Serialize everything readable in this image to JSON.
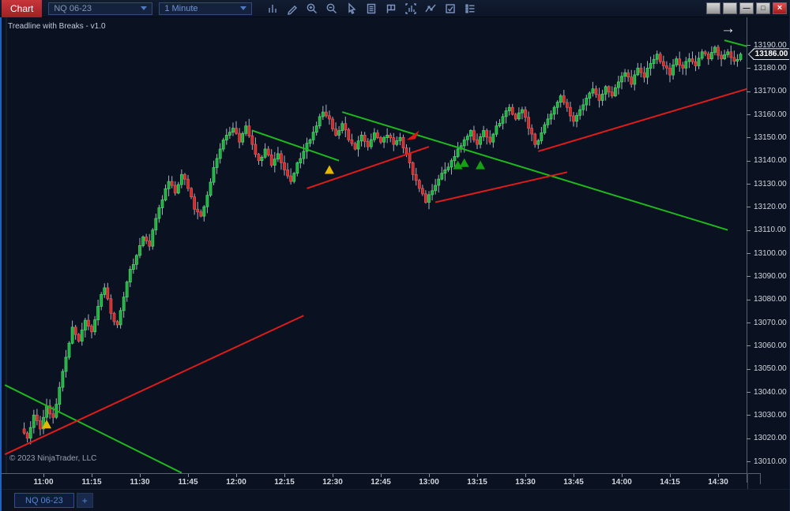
{
  "toolbar": {
    "chart_tab_label": "Chart",
    "instrument_value": "NQ 06-23",
    "interval_value": "1 Minute",
    "icon_names": [
      "chart-style",
      "drawing-tools",
      "zoom-in",
      "zoom-out",
      "cursor",
      "data-series",
      "chart-trader",
      "indicators",
      "trend-lines",
      "strategies",
      "properties"
    ]
  },
  "window_controls": [
    {
      "name": "extra-1",
      "glyph": ""
    },
    {
      "name": "extra-2",
      "glyph": ""
    },
    {
      "name": "minimize",
      "glyph": "—"
    },
    {
      "name": "maximize",
      "glyph": "□"
    },
    {
      "name": "close",
      "glyph": "×"
    }
  ],
  "chart": {
    "indicator_label": "Treadline with Breaks - v1.0",
    "copyright": "© 2023 NinjaTrader, LLC",
    "scroll_arrow": "→"
  },
  "price_marker": {
    "label": "13186.00",
    "value": 13186
  },
  "tab_bar": {
    "tab_label": "NQ 06-23",
    "add_button": "+"
  },
  "chart_data": {
    "type": "candlestick",
    "instrument": "NQ 06-23",
    "interval": "1 Minute",
    "title": "Treadline with Breaks - v1.0",
    "price_axis": {
      "min": 13010,
      "max": 13190,
      "step": 10,
      "tick_labels": [
        "13190.00",
        "13180.00",
        "13170.00",
        "13160.00",
        "13150.00",
        "13140.00",
        "13130.00",
        "13120.00",
        "13110.00",
        "13100.00",
        "13090.00",
        "13080.00",
        "13070.00",
        "13060.00",
        "13050.00",
        "13040.00",
        "13030.00",
        "13020.00",
        "13010.00"
      ]
    },
    "time_axis": {
      "tick_labels": [
        "11:00",
        "11:15",
        "11:30",
        "11:45",
        "12:00",
        "12:15",
        "12:30",
        "12:45",
        "13:00",
        "13:15",
        "13:30",
        "13:45",
        "14:00",
        "14:15",
        "14:30"
      ],
      "step_min": 15
    },
    "last_price": 13186,
    "candles": {
      "note": "1-minute bars; anchor closes sampled every 2 minutes starting 10:54",
      "start_offset_min": -6,
      "anchor_step_min": 2,
      "anchor_closes": [
        13024,
        13020,
        13030,
        13024,
        13034,
        13029,
        13042,
        13055,
        13068,
        13062,
        13071,
        13066,
        13077,
        13085,
        13074,
        13069,
        13081,
        13093,
        13099,
        13107,
        13103,
        13115,
        13123,
        13131,
        13126,
        13134,
        13128,
        13119,
        13116,
        13125,
        13137,
        13145,
        13151,
        13154,
        13148,
        13155,
        13147,
        13140,
        13145,
        13138,
        13143,
        13136,
        13131,
        13139,
        13144,
        13149,
        13155,
        13161,
        13158,
        13151,
        13156,
        13149,
        13145,
        13151,
        13146,
        13152,
        13148,
        13151,
        13147,
        13150,
        13143,
        13134,
        13128,
        13122,
        13127,
        13132,
        13136,
        13140,
        13145,
        13149,
        13153,
        13147,
        13153,
        13148,
        13155,
        13159,
        13163,
        13158,
        13162,
        13154,
        13147,
        13152,
        13158,
        13163,
        13168,
        13163,
        13157,
        13162,
        13167,
        13171,
        13166,
        13172,
        13168,
        13174,
        13178,
        13173,
        13180,
        13176,
        13182,
        13186,
        13181,
        13177,
        13184,
        13180,
        13184,
        13181,
        13187,
        13184,
        13189,
        13184,
        13187,
        13183,
        13186
      ]
    },
    "trendlines": [
      {
        "color": "green",
        "t1": -12,
        "p1": 13043,
        "t2": 43,
        "p2": 13005
      },
      {
        "color": "red",
        "t1": -12,
        "p1": 13013,
        "t2": 81,
        "p2": 13073
      },
      {
        "color": "green",
        "t1": 65,
        "p1": 13153,
        "t2": 92,
        "p2": 13140
      },
      {
        "color": "red",
        "t1": 82,
        "p1": 13128,
        "t2": 120,
        "p2": 13146
      },
      {
        "color": "green",
        "t1": 93,
        "p1": 13161,
        "t2": 213,
        "p2": 13110
      },
      {
        "color": "red",
        "t1": 122,
        "p1": 13122,
        "t2": 163,
        "p2": 13135
      },
      {
        "color": "red",
        "t1": 154,
        "p1": 13144,
        "t2": 219,
        "p2": 13171
      },
      {
        "color": "green",
        "t1": 212,
        "p1": 13192,
        "t2": 220,
        "p2": 13189
      }
    ],
    "markers": [
      {
        "shape": "triangle-up",
        "color": "#e6b800",
        "t": 1,
        "p": 13028,
        "name": "buy-signal"
      },
      {
        "shape": "triangle-up",
        "color": "#e6b800",
        "t": 89,
        "p": 13138,
        "name": "buy-signal"
      },
      {
        "shape": "flag-down",
        "color": "#e01717",
        "t": 115,
        "p": 13150,
        "name": "sell-signal"
      },
      {
        "shape": "triangle-up",
        "color": "#15a015",
        "t": 129,
        "p": 13140,
        "name": "buy-signal"
      },
      {
        "shape": "triangle-up",
        "color": "#15a015",
        "t": 131,
        "p": 13141,
        "name": "buy-signal"
      },
      {
        "shape": "triangle-up",
        "color": "#15a015",
        "t": 136,
        "p": 13140,
        "name": "buy-signal"
      }
    ],
    "colors": {
      "background": "#0a1120",
      "up_candle": "#1fae3d",
      "up_stroke": "#45d368",
      "down_candle": "#cf2b2b",
      "down_stroke": "#e05151",
      "wick": "#a9b1be",
      "green_line": "#1eb81e",
      "red_line": "#e01b1b",
      "axis_text": "#d2d7df"
    }
  }
}
